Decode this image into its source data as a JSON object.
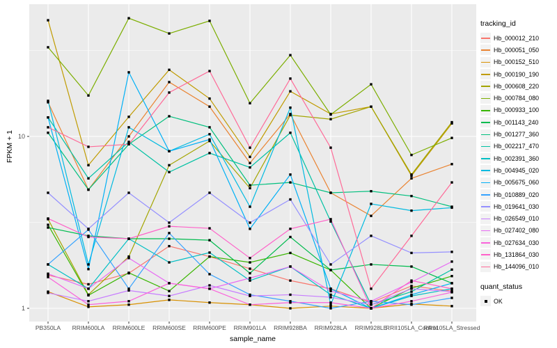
{
  "figure": {
    "xlabel": "sample_name",
    "ylabel": "FPKM + 1",
    "legend_title": "tracking_id",
    "quant_legend_title": "quant_status",
    "quant_ok_label": "OK"
  },
  "colors": {
    "panel_bg": "#EBEBEB",
    "grid": "#FFFFFF",
    "axis_text": "#4D4D4D",
    "axis_tick": "#333333",
    "legend_key_bg": "#F2F2F2",
    "point": "#000000"
  },
  "chart_data": {
    "type": "line",
    "y_scale": "log10",
    "xlabel": "sample_name",
    "ylabel": "FPKM + 1",
    "x_categories": [
      "PB350LA",
      "RRIM600LA",
      "RRIM600LE",
      "RRIM600SE",
      "RRIM600PE",
      "RRIM901LA",
      "RRIM928BA",
      "RRIM928LA",
      "RRIM928LE",
      "RRII105LA_Control",
      "RRII105LA_Stressed"
    ],
    "y_ticks": [
      1,
      10
    ],
    "y_minor_ticks": [
      3.162,
      31.62
    ],
    "legend_position": "right",
    "grid": true,
    "point_marker": "black-square",
    "quant_status_value": "OK",
    "series": [
      {
        "name": "Hb_000012_210",
        "color": "#F8766D",
        "values": [
          1.56,
          1.38,
          1.6,
          2.3,
          2.0,
          1.7,
          1.45,
          1.3,
          1.08,
          1.35,
          1.26
        ]
      },
      {
        "name": "Hb_000051_050",
        "color": "#EA8331",
        "values": [
          15.8,
          4.9,
          10.0,
          20.7,
          14.9,
          7.0,
          13.5,
          4.7,
          3.45,
          5.7,
          6.9
        ]
      },
      {
        "name": "Hb_000152_510",
        "color": "#D89000",
        "values": [
          1.25,
          1.02,
          1.05,
          1.12,
          1.08,
          1.05,
          1.0,
          1.03,
          1.0,
          1.06,
          1.03
        ]
      },
      {
        "name": "Hb_000190_190",
        "color": "#C09B00",
        "values": [
          47.4,
          6.8,
          13.0,
          24.4,
          16.6,
          7.6,
          18.3,
          13.5,
          14.9,
          5.9,
          11.9
        ]
      },
      {
        "name": "Hb_000608_220",
        "color": "#A3A500",
        "values": [
          3.3,
          1.2,
          2.0,
          6.8,
          9.4,
          5.0,
          13.3,
          12.6,
          14.9,
          6.0,
          12.1
        ]
      },
      {
        "name": "Hb_000784_080",
        "color": "#7CAE00",
        "values": [
          33.0,
          17.3,
          48.7,
          39.7,
          47.0,
          15.6,
          29.7,
          13.4,
          20.1,
          7.8,
          9.8
        ]
      },
      {
        "name": "Hb_000933_100",
        "color": "#39B600",
        "values": [
          3.06,
          1.19,
          1.61,
          1.26,
          2.0,
          1.85,
          2.1,
          1.67,
          1.0,
          1.31,
          1.54
        ]
      },
      {
        "name": "Hb_001143_240",
        "color": "#00BB4E",
        "values": [
          2.95,
          2.64,
          2.54,
          2.54,
          2.49,
          1.6,
          2.6,
          1.67,
          1.8,
          1.75,
          1.4
        ]
      },
      {
        "name": "Hb_001277_360",
        "color": "#00BF7D",
        "values": [
          10.5,
          4.9,
          9.0,
          13.1,
          11.3,
          5.2,
          5.4,
          4.7,
          4.8,
          4.5,
          3.9
        ]
      },
      {
        "name": "Hb_002217_470",
        "color": "#00C1A3",
        "values": [
          12.9,
          5.7,
          9.3,
          6.2,
          8.0,
          6.6,
          10.5,
          3.2,
          1.05,
          1.25,
          1.68
        ]
      },
      {
        "name": "Hb_002391_360",
        "color": "#00BFC4",
        "values": [
          1.8,
          1.3,
          2.54,
          1.85,
          2.11,
          1.45,
          1.75,
          1.2,
          1.0,
          1.18,
          1.3
        ]
      },
      {
        "name": "Hb_004945_020",
        "color": "#00BAE0",
        "values": [
          16.1,
          1.8,
          11.3,
          8.2,
          10.3,
          3.9,
          14.7,
          1.05,
          4.05,
          3.7,
          3.85
        ]
      },
      {
        "name": "Hb_005675_060",
        "color": "#00B0F6",
        "values": [
          12.9,
          1.69,
          23.6,
          8.2,
          9.6,
          2.9,
          6.0,
          1.3,
          1.0,
          1.2,
          1.4
        ]
      },
      {
        "name": "Hb_010889_020",
        "color": "#35A2FF",
        "values": [
          1.8,
          2.87,
          1.3,
          2.74,
          1.58,
          1.2,
          1.1,
          1.0,
          1.1,
          1.05,
          1.15
        ]
      },
      {
        "name": "Hb_019641_030",
        "color": "#9590FF",
        "values": [
          4.7,
          2.9,
          4.7,
          3.15,
          4.7,
          3.15,
          4.3,
          1.8,
          2.64,
          2.1,
          2.13
        ]
      },
      {
        "name": "Hb_026549_010",
        "color": "#C77CFF",
        "values": [
          1.23,
          1.1,
          1.27,
          1.18,
          1.36,
          1.18,
          1.2,
          1.16,
          1.05,
          1.3,
          1.25
        ]
      },
      {
        "name": "Hb_027402_080",
        "color": "#E76BF3",
        "values": [
          1.59,
          1.3,
          1.96,
          1.4,
          1.3,
          1.5,
          1.75,
          1.26,
          1.1,
          1.42,
          1.87
        ]
      },
      {
        "name": "Hb_027634_030",
        "color": "#FA62DB",
        "values": [
          1.52,
          1.05,
          1.1,
          1.4,
          1.3,
          1.05,
          1.08,
          1.08,
          1.0,
          1.1,
          1.24
        ]
      },
      {
        "name": "Hb_131864_030",
        "color": "#FF61C9",
        "values": [
          3.33,
          2.6,
          2.54,
          3.0,
          2.92,
          1.96,
          2.9,
          3.3,
          1.0,
          1.45,
          1.3
        ]
      },
      {
        "name": "Hb_144096_010",
        "color": "#FF6A98",
        "values": [
          11.3,
          8.7,
          9.0,
          18.0,
          24.0,
          8.6,
          21.7,
          8.6,
          1.3,
          2.64,
          5.4
        ]
      }
    ]
  }
}
